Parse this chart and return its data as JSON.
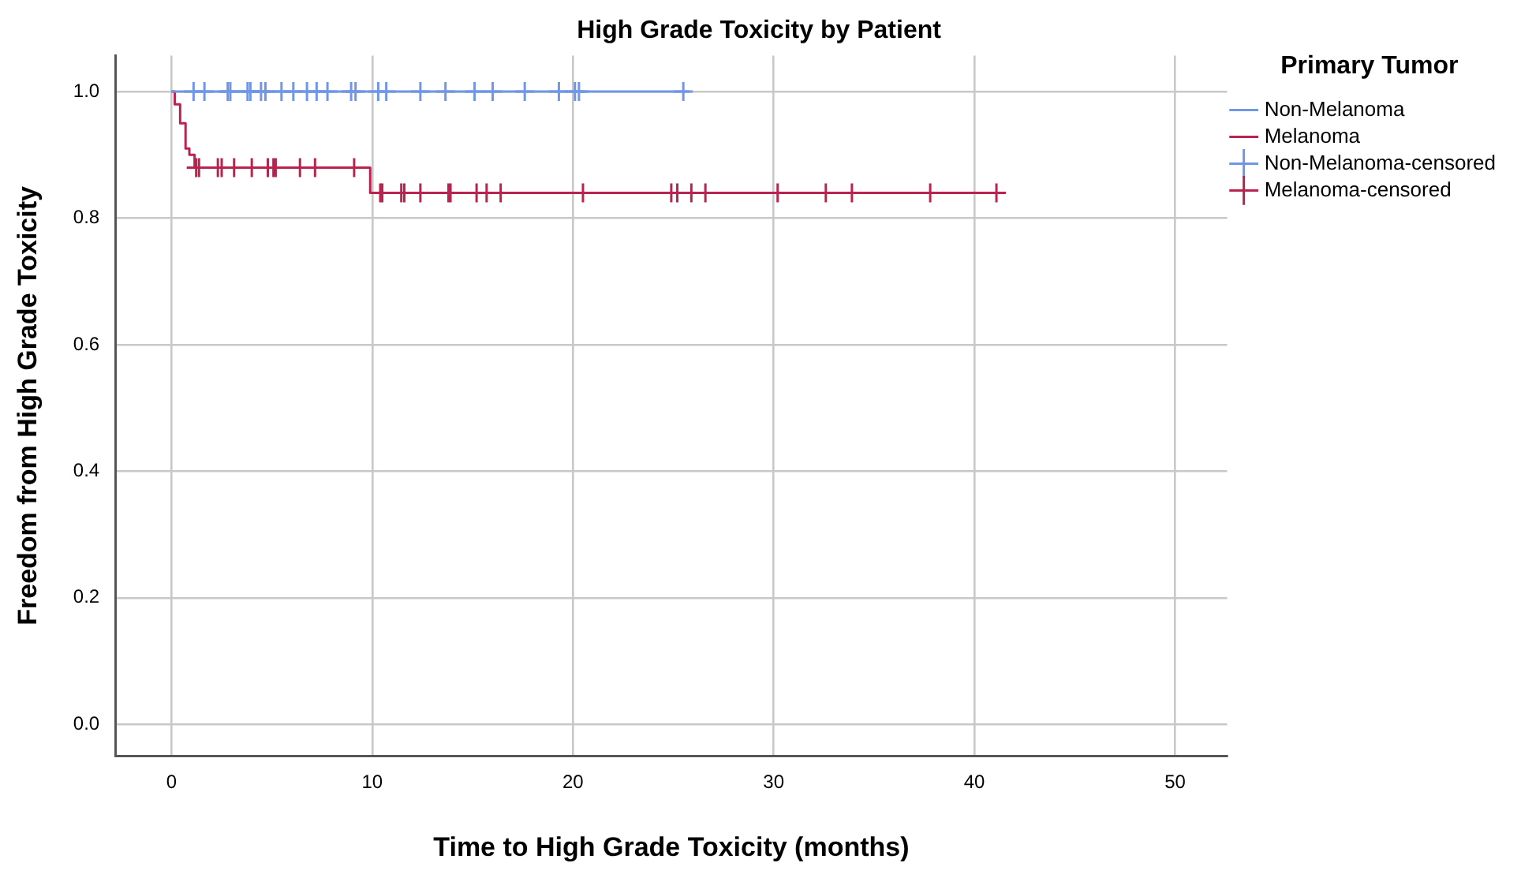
{
  "chart_data": {
    "type": "step",
    "title": "High Grade Toxicity by Patient",
    "xlabel": "Time to High Grade Toxicity (months)",
    "ylabel": "Freedom from High Grade Toxicity",
    "legend_title": "Primary Tumor",
    "legend": "top right",
    "grid": true,
    "xlim": [
      -2.8,
      52.6
    ],
    "xticks": [
      0,
      10,
      20,
      30,
      40,
      50
    ],
    "ylim": [
      -0.05,
      1.057
    ],
    "yticks": [
      {
        "value": 0,
        "label": "0.0"
      },
      {
        "value": 0.2,
        "label": "0.2"
      },
      {
        "value": 0.4,
        "label": "0.4"
      },
      {
        "value": 0.6,
        "label": "0.6"
      },
      {
        "value": 0.8,
        "label": "0.8"
      },
      {
        "value": 1,
        "label": "1.0"
      }
    ],
    "series": [
      {
        "name": "Non-Melanoma",
        "type": "step",
        "color": "#7096e6",
        "marker": "none",
        "x": [
          0,
          25.8
        ],
        "values": [
          1,
          1
        ]
      },
      {
        "name": "Melanoma",
        "type": "step",
        "color": "#b8234f",
        "marker": "none",
        "x": [
          0,
          0.16,
          0.43,
          0.7,
          0.89,
          1.15,
          9.9,
          41.4
        ],
        "values": [
          1,
          0.98,
          0.95,
          0.91,
          0.9,
          0.88,
          0.84,
          0.84
        ]
      },
      {
        "name": "Non-Melanoma-censored",
        "type": "scatter",
        "color": "#7096e6",
        "marker": "cross",
        "x": [
          1.1,
          1.64,
          2.8,
          2.93,
          3.04,
          3.15,
          3.79,
          3.93,
          4.46,
          4.68,
          5.48,
          6.07,
          6.75,
          7.23,
          7.77,
          8.95,
          9.17,
          10.3,
          10.7,
          12.4,
          13.65,
          15.1,
          16.0,
          17.6,
          19.3,
          20.1,
          20.3,
          25.5
        ],
        "values": [
          1,
          1,
          1,
          1,
          null,
          null,
          1,
          1,
          1,
          1,
          1,
          1,
          1,
          1,
          1,
          1,
          1,
          1,
          1,
          1,
          1,
          1,
          1,
          1,
          1,
          1,
          1,
          1
        ]
      },
      {
        "name": "Melanoma-censored",
        "type": "scatter",
        "color": "#b8234f",
        "marker": "cross",
        "x": [
          1.23,
          1.37,
          2.31,
          2.5,
          3.12,
          4.0,
          4.8,
          5.08,
          5.19,
          6.4,
          7.15,
          9.1,
          10.4,
          10.5,
          11.45,
          11.6,
          12.4,
          13.8,
          13.9,
          15.2,
          15.7,
          16.4,
          20.5,
          24.9,
          25.2,
          25.9,
          26.6,
          30.2,
          32.6,
          33.9,
          37.8,
          41.1
        ],
        "values": [
          0.88,
          0.88,
          0.88,
          0.88,
          0.88,
          0.88,
          0.88,
          0.88,
          0.88,
          0.88,
          0.88,
          0.88,
          0.84,
          0.84,
          0.84,
          0.84,
          0.84,
          0.84,
          0.84,
          0.84,
          0.84,
          0.84,
          0.84,
          0.84,
          0.84,
          0.84,
          0.84,
          0.84,
          0.84,
          0.84,
          0.84,
          0.84
        ]
      }
    ]
  }
}
